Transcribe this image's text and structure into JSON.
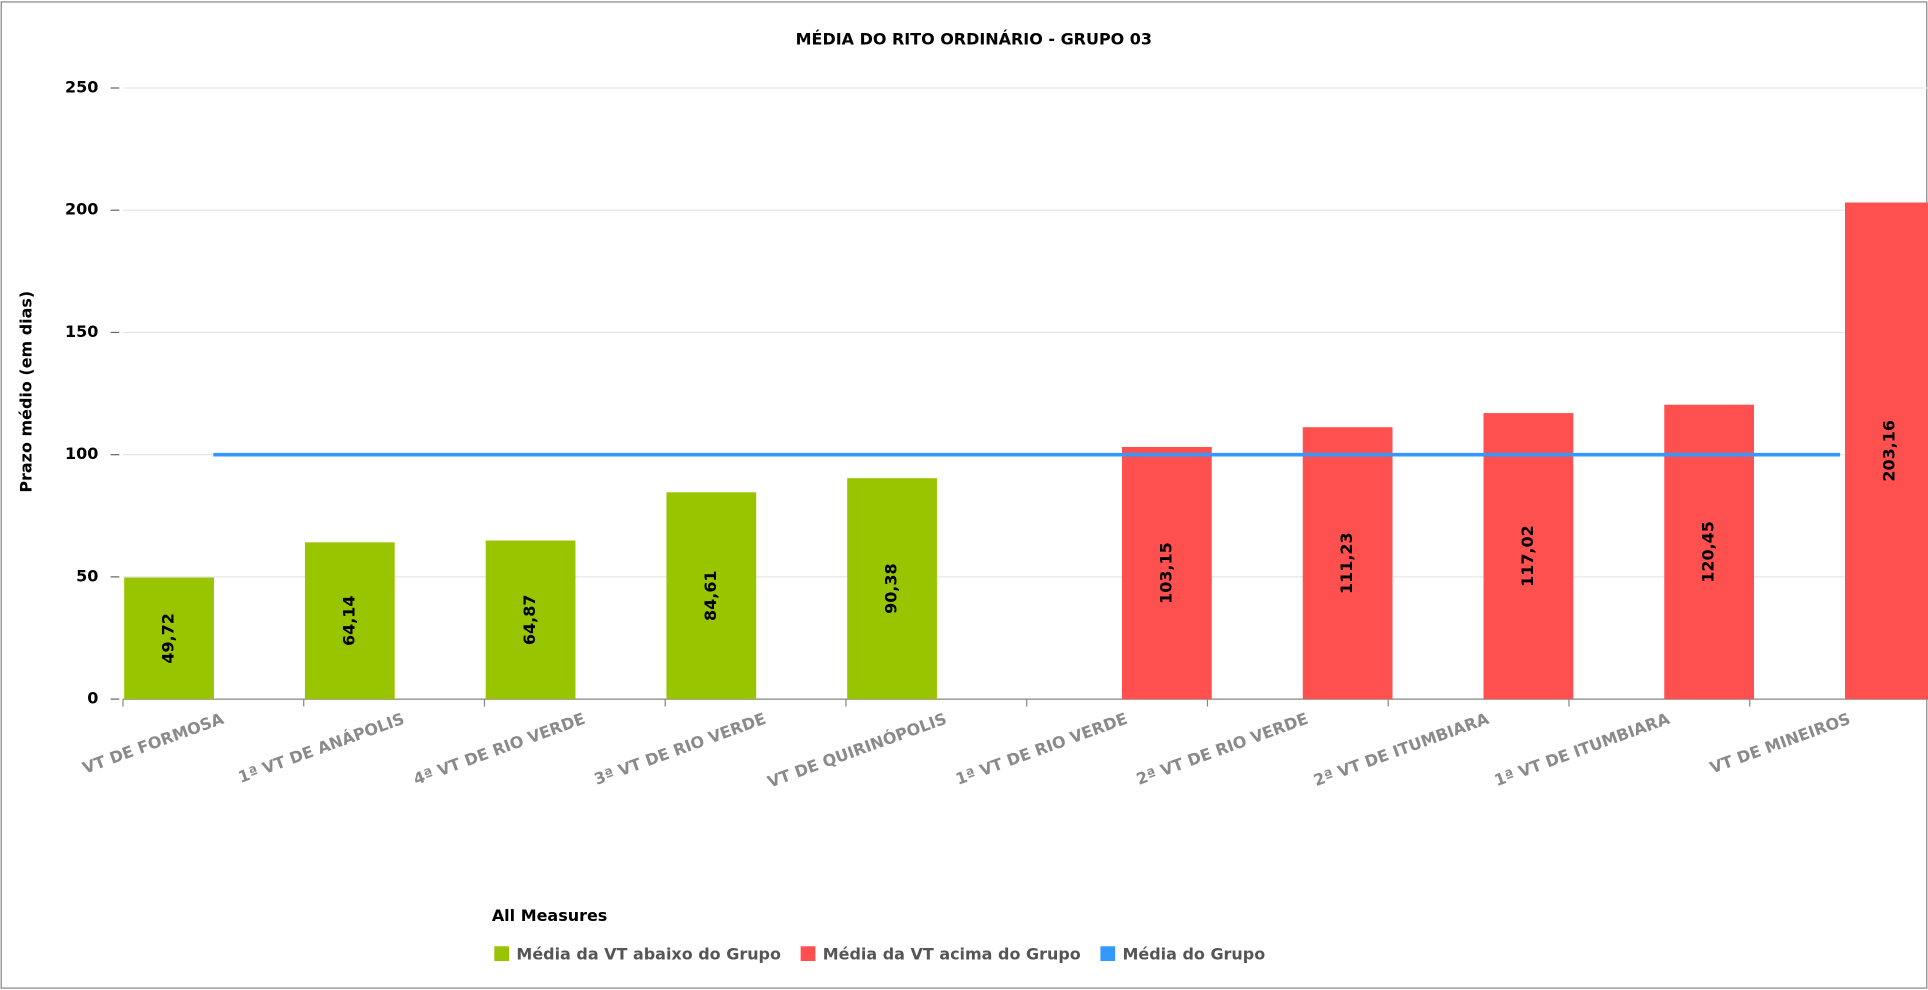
{
  "chart_data": {
    "type": "bar",
    "title": "MÉDIA DO RITO ORDINÁRIO - GRUPO 03",
    "y_label": "Prazo médio (em dias)",
    "categories": [
      "VT DE FORMOSA",
      "1ª VT DE ANÁPOLIS",
      "4ª VT DE RIO VERDE",
      "3ª VT DE RIO VERDE",
      "VT DE QUIRINÓPOLIS",
      "1ª VT DE RIO VERDE",
      "2ª VT DE RIO VERDE",
      "2ª VT DE ITUMBIARA",
      "1ª VT DE ITUMBIARA",
      "VT DE MINEIROS"
    ],
    "series": [
      {
        "name": "Média da VT abaixo do Grupo",
        "color": "#99c400",
        "type": "bar",
        "values": [
          49.72,
          64.14,
          64.87,
          84.61,
          90.38,
          null,
          null,
          null,
          null,
          null
        ],
        "value_labels": [
          "49,72",
          "64,14",
          "64,87",
          "84,61",
          "90,38",
          null,
          null,
          null,
          null,
          null
        ]
      },
      {
        "name": "Média da VT acima do Grupo",
        "color": "#ff5050",
        "type": "bar",
        "values": [
          null,
          null,
          null,
          null,
          null,
          103.15,
          111.23,
          117.02,
          120.45,
          203.16
        ],
        "value_labels": [
          null,
          null,
          null,
          null,
          null,
          "103,15",
          "111,23",
          "117,02",
          "120,45",
          "203,16"
        ]
      },
      {
        "name": "Média do Grupo",
        "color": "#3399ff",
        "type": "line",
        "values": [
          100,
          100,
          100,
          100,
          100,
          100,
          100,
          100,
          100,
          100
        ]
      }
    ],
    "legend_title": "All Measures",
    "ylim": [
      0,
      250
    ],
    "yticks": [
      0,
      50,
      100,
      150,
      200,
      250
    ],
    "grid": true
  }
}
